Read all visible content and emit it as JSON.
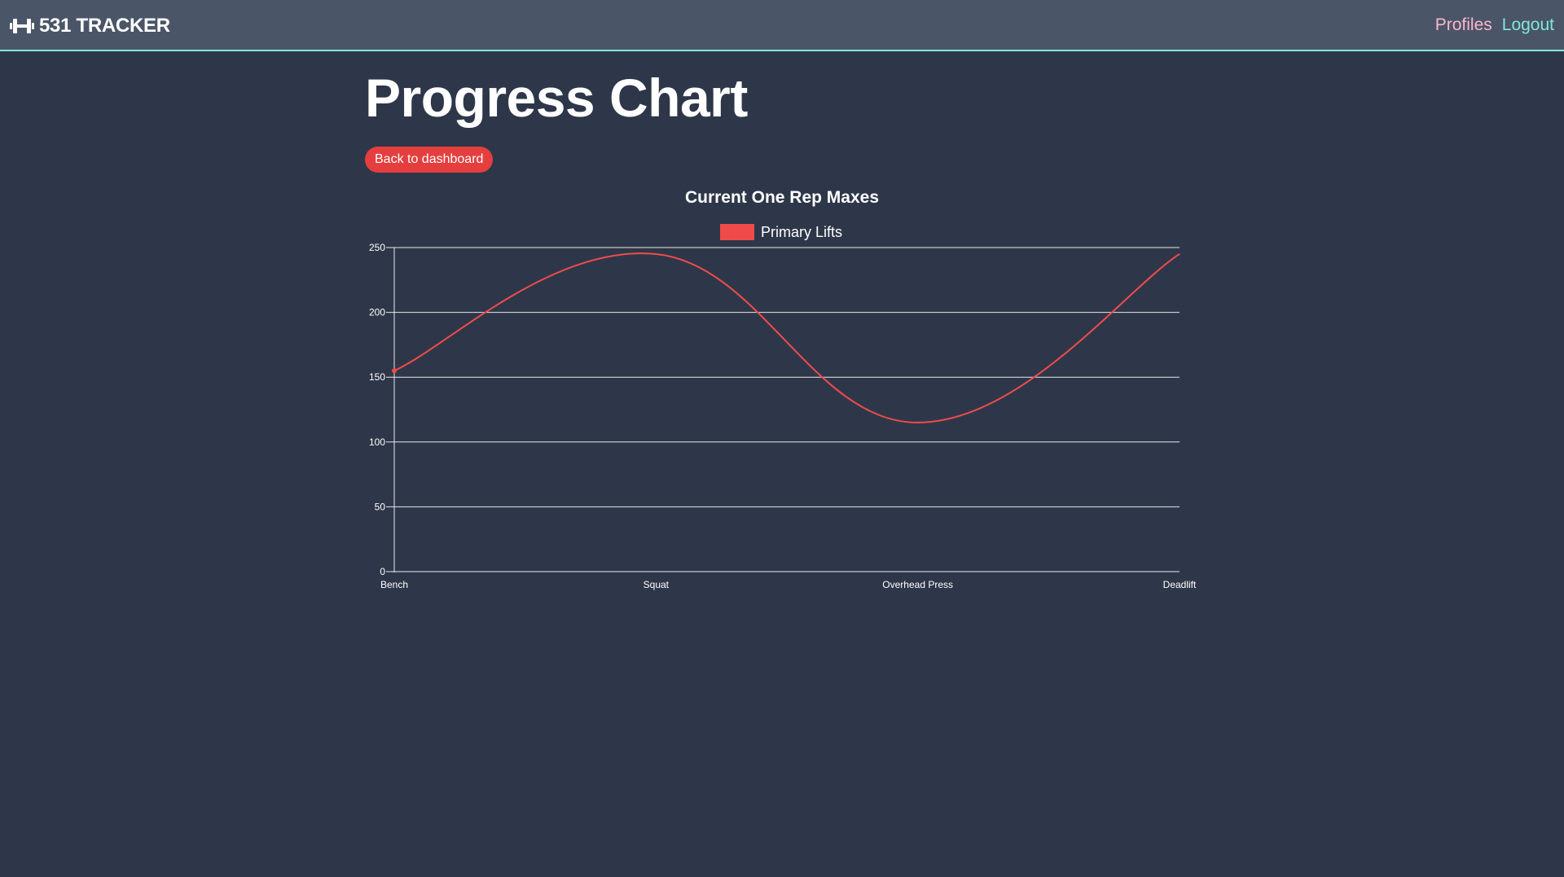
{
  "navbar": {
    "brand": "531 TRACKER",
    "brand_icon": "dumbbell-icon",
    "links": {
      "profiles": "Profiles",
      "logout": "Logout"
    },
    "colors": {
      "background": "#4a5568",
      "border": "#81e6d9",
      "profiles": "#fbb6ce",
      "logout": "#81e6d9"
    }
  },
  "page": {
    "title": "Progress Chart",
    "back_button": "Back to dashboard",
    "background": "#2e3749",
    "accent": "#e53e3e"
  },
  "chart_data": {
    "type": "line",
    "title": "Current One Rep Maxes",
    "categories": [
      "Bench",
      "Squat",
      "Overhead Press",
      "Deadlift"
    ],
    "series": [
      {
        "name": "Primary Lifts",
        "values": [
          155,
          245,
          115,
          245
        ],
        "color": "#f04b4b"
      }
    ],
    "ylim": [
      0,
      250
    ],
    "yticks": [
      0,
      50,
      100,
      150,
      200,
      250
    ],
    "grid": true,
    "legend": "top-center",
    "smooth": true
  }
}
